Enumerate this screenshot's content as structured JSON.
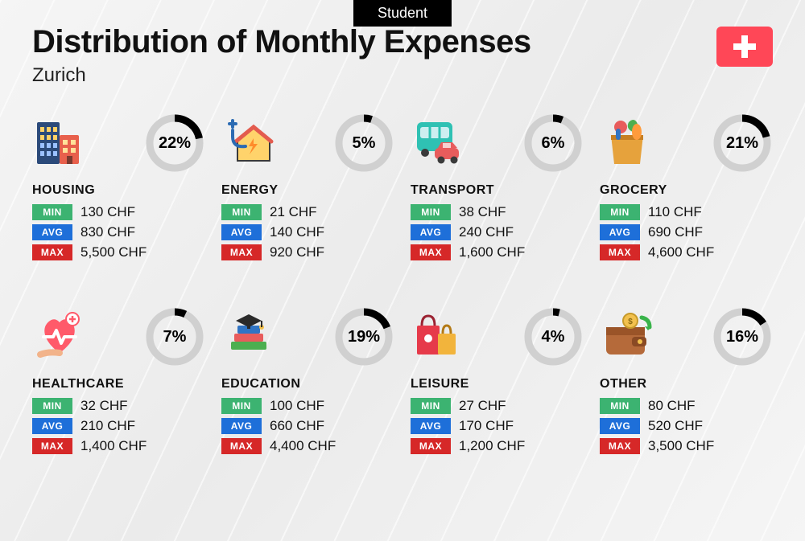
{
  "badge": "Student",
  "title": "Distribution of Monthly Expenses",
  "subtitle": "Zurich",
  "flag": {
    "bg": "#ff4757",
    "cross": "#ffffff"
  },
  "currency": "CHF",
  "labels": {
    "min": "MIN",
    "avg": "AVG",
    "max": "MAX"
  },
  "tag_colors": {
    "min": "#3cb371",
    "avg": "#1e6fd9",
    "max": "#d62828"
  },
  "donut": {
    "track": "#d0d0d0",
    "fill": "#000000",
    "thickness": 9,
    "radius": 31
  },
  "categories": [
    {
      "key": "housing",
      "name": "HOUSING",
      "pct": 22,
      "min": "130",
      "avg": "830",
      "max": "5,500",
      "icon": "buildings"
    },
    {
      "key": "energy",
      "name": "ENERGY",
      "pct": 5,
      "min": "21",
      "avg": "140",
      "max": "920",
      "icon": "energy-house"
    },
    {
      "key": "transport",
      "name": "TRANSPORT",
      "pct": 6,
      "min": "38",
      "avg": "240",
      "max": "1,600",
      "icon": "bus-car"
    },
    {
      "key": "grocery",
      "name": "GROCERY",
      "pct": 21,
      "min": "110",
      "avg": "690",
      "max": "4,600",
      "icon": "grocery-bag"
    },
    {
      "key": "healthcare",
      "name": "HEALTHCARE",
      "pct": 7,
      "min": "32",
      "avg": "210",
      "max": "1,400",
      "icon": "healthcare"
    },
    {
      "key": "education",
      "name": "EDUCATION",
      "pct": 19,
      "min": "100",
      "avg": "660",
      "max": "4,400",
      "icon": "education"
    },
    {
      "key": "leisure",
      "name": "LEISURE",
      "pct": 4,
      "min": "27",
      "avg": "170",
      "max": "1,200",
      "icon": "shopping-bags"
    },
    {
      "key": "other",
      "name": "OTHER",
      "pct": 16,
      "min": "80",
      "avg": "520",
      "max": "3,500",
      "icon": "wallet"
    }
  ],
  "typography": {
    "title_fontsize": 40,
    "subtitle_fontsize": 24,
    "category_fontsize": 16,
    "value_fontsize": 17,
    "pct_fontsize": 20
  },
  "background": "#f2f2f2"
}
